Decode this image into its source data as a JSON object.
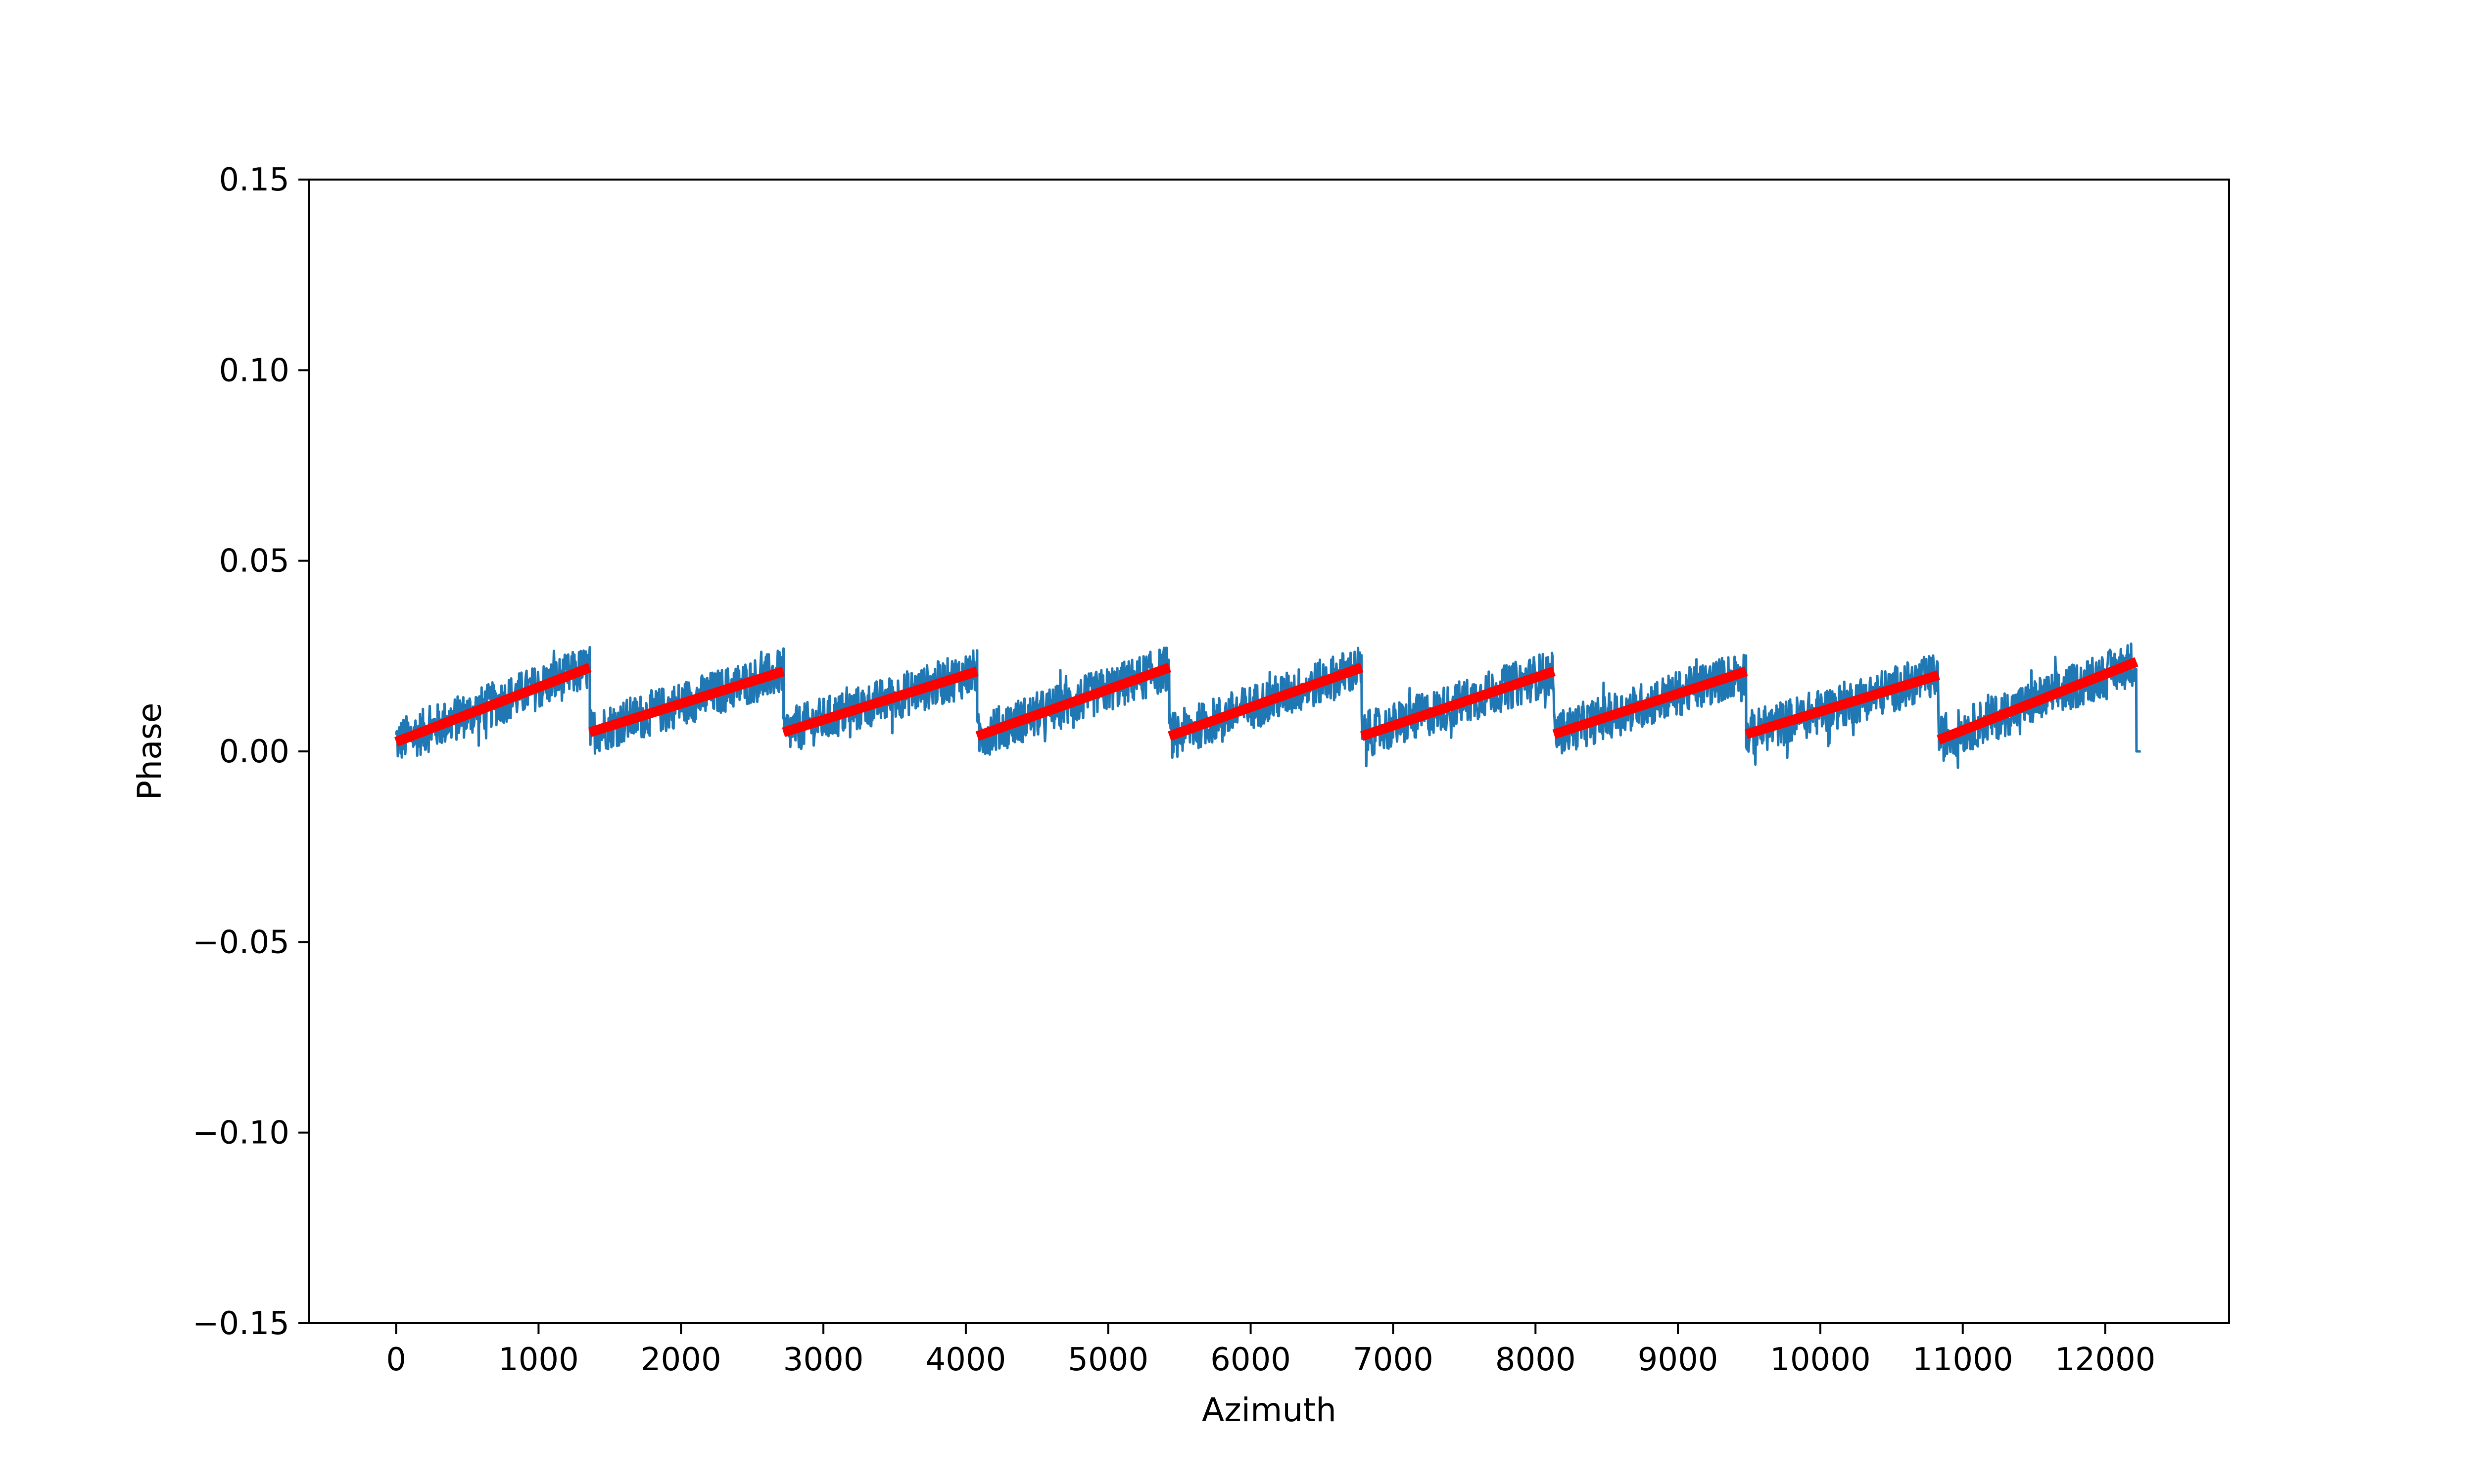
{
  "chart_data": {
    "type": "line",
    "title": "",
    "xlabel": "Azimuth",
    "ylabel": "Phase",
    "xlim": [
      -610,
      12870
    ],
    "ylim": [
      -0.15,
      0.15
    ],
    "xticks": [
      0,
      1000,
      2000,
      3000,
      4000,
      5000,
      6000,
      7000,
      8000,
      9000,
      10000,
      11000,
      12000
    ],
    "xtick_labels": [
      "0",
      "1000",
      "2000",
      "3000",
      "4000",
      "5000",
      "6000",
      "7000",
      "8000",
      "9000",
      "10000",
      "11000",
      "12000"
    ],
    "yticks": [
      -0.15,
      -0.1,
      -0.05,
      0.0,
      0.05,
      0.1,
      0.15
    ],
    "ytick_labels": [
      "−0.15",
      "−0.10",
      "−0.05",
      "0.00",
      "0.05",
      "0.10",
      "0.15"
    ],
    "grid": false,
    "legend": "none",
    "colors": {
      "data": "#1f77b4",
      "fit": "#ff0000",
      "frame": "#000000"
    },
    "segments": [
      {
        "x_start": 0,
        "x_end": 1360,
        "fit_start": 0.0025,
        "fit_end": 0.022,
        "noise_amp": 0.006
      },
      {
        "x_start": 1360,
        "x_end": 2720,
        "fit_start": 0.005,
        "fit_end": 0.021,
        "noise_amp": 0.006
      },
      {
        "x_start": 2720,
        "x_end": 4080,
        "fit_start": 0.005,
        "fit_end": 0.021,
        "noise_amp": 0.006
      },
      {
        "x_start": 4080,
        "x_end": 5430,
        "fit_start": 0.004,
        "fit_end": 0.022,
        "noise_amp": 0.006
      },
      {
        "x_start": 5430,
        "x_end": 6780,
        "fit_start": 0.004,
        "fit_end": 0.022,
        "noise_amp": 0.006
      },
      {
        "x_start": 6780,
        "x_end": 8130,
        "fit_start": 0.004,
        "fit_end": 0.021,
        "noise_amp": 0.006
      },
      {
        "x_start": 8130,
        "x_end": 9480,
        "fit_start": 0.0045,
        "fit_end": 0.021,
        "noise_amp": 0.006
      },
      {
        "x_start": 9480,
        "x_end": 10830,
        "fit_start": 0.0045,
        "fit_end": 0.02,
        "noise_amp": 0.006
      },
      {
        "x_start": 10830,
        "x_end": 12220,
        "fit_start": 0.003,
        "fit_end": 0.0235,
        "noise_amp": 0.006
      }
    ],
    "tail": {
      "x": [
        12220,
        12250
      ],
      "y": [
        0.0,
        0.0
      ]
    }
  }
}
